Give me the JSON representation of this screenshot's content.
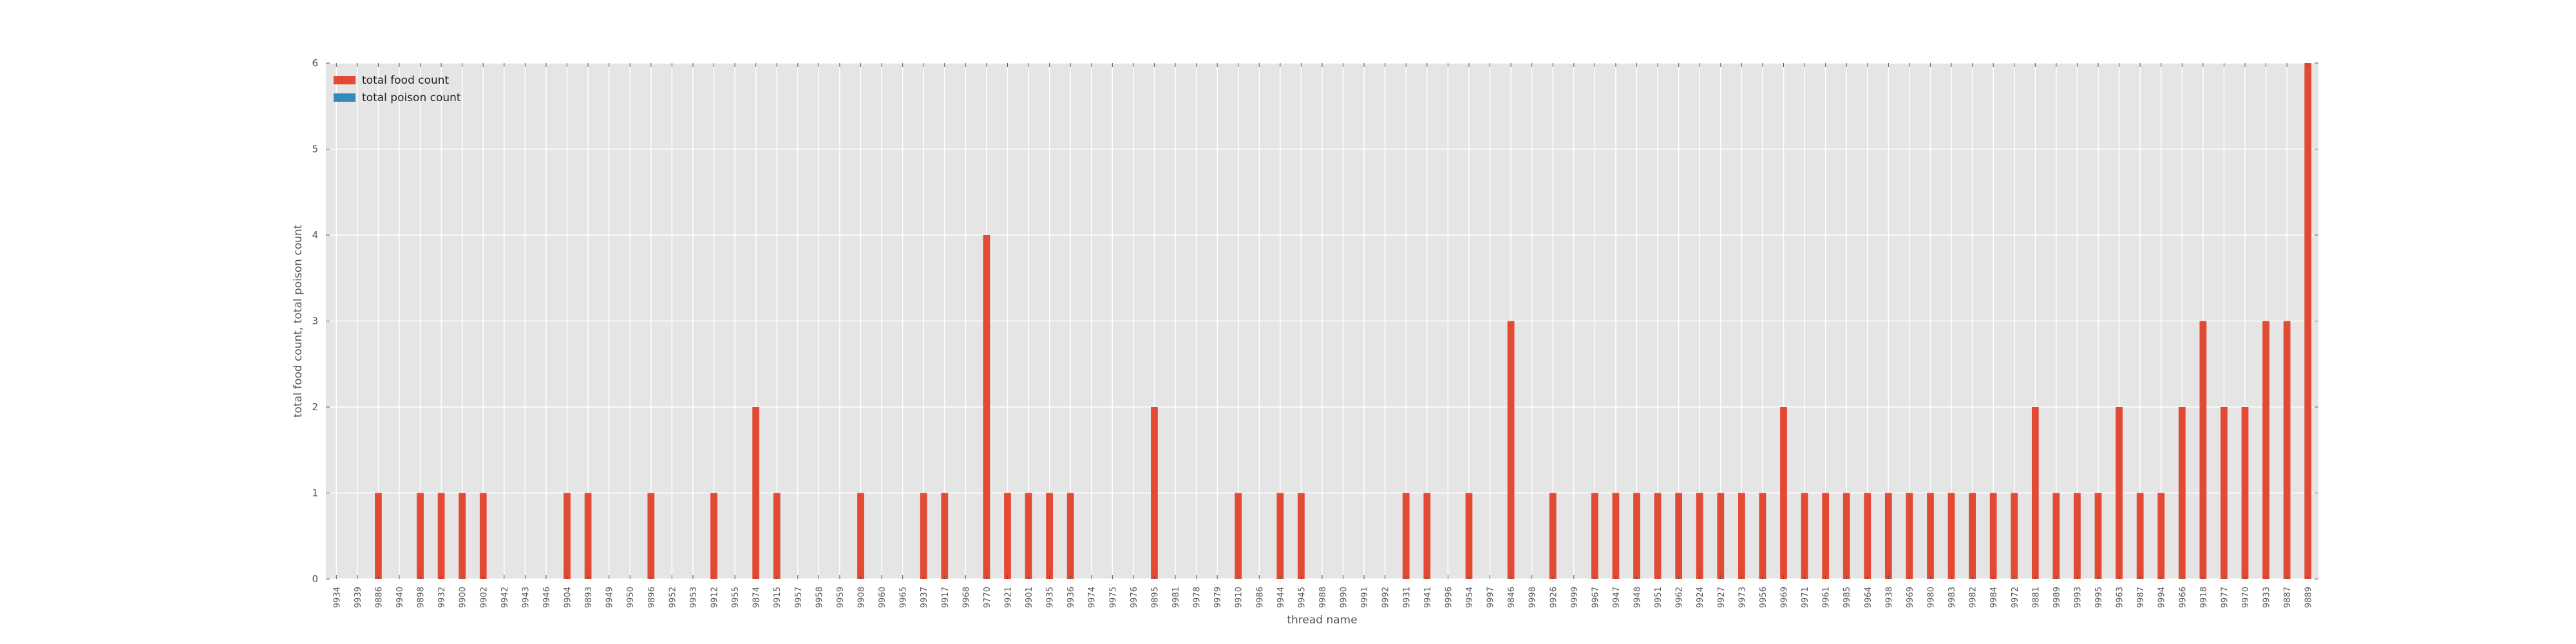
{
  "chart_data": {
    "type": "bar",
    "title": "",
    "xlabel": "thread name",
    "ylabel": "total food count, total poison count",
    "ylim": [
      0,
      6
    ],
    "yticks": [
      "0",
      "1",
      "2",
      "3",
      "4",
      "5",
      "6"
    ],
    "grid": true,
    "legend_position": "top-left",
    "categories": [
      "9934",
      "9939",
      "9886",
      "9940",
      "9898",
      "9932",
      "9900",
      "9902",
      "9942",
      "9943",
      "9946",
      "9904",
      "9893",
      "9949",
      "9950",
      "9896",
      "9952",
      "9953",
      "9912",
      "9955",
      "9874",
      "9915",
      "9957",
      "9958",
      "9959",
      "9908",
      "9960",
      "9965",
      "9937",
      "9917",
      "9968",
      "9770",
      "9921",
      "9901",
      "9935",
      "9936",
      "9974",
      "9975",
      "9976",
      "9895",
      "9981",
      "9978",
      "9979",
      "9910",
      "9986",
      "9944",
      "9945",
      "9988",
      "9990",
      "9991",
      "9992",
      "9931",
      "9941",
      "9996",
      "9954",
      "9997",
      "9846",
      "9998",
      "9926",
      "9999",
      "9967",
      "9947",
      "9948",
      "9951",
      "9962",
      "9924",
      "9927",
      "9973",
      "9956",
      "9969",
      "9971",
      "9961",
      "9985",
      "9964",
      "9938",
      "9969",
      "9980",
      "9983",
      "9982",
      "9984",
      "9972",
      "9881",
      "9989",
      "9993",
      "9995",
      "9963",
      "9987",
      "9994",
      "9966",
      "9918",
      "9977",
      "9970",
      "9933",
      "9887",
      "9889"
    ],
    "series": [
      {
        "name": "total food count",
        "color": "#e24a33",
        "values": [
          0,
          0,
          1,
          0,
          1,
          1,
          1,
          1,
          0,
          0,
          0,
          1,
          1,
          0,
          0,
          1,
          0,
          0,
          1,
          0,
          2,
          1,
          0,
          0,
          0,
          1,
          0,
          0,
          1,
          1,
          0,
          4,
          1,
          1,
          1,
          1,
          0,
          0,
          0,
          2,
          0,
          0,
          0,
          1,
          0,
          1,
          1,
          0,
          0,
          0,
          0,
          1,
          1,
          0,
          1,
          0,
          3,
          0,
          1,
          0,
          1,
          1,
          1,
          1,
          1,
          1,
          1,
          1,
          1,
          2,
          1,
          1,
          1,
          1,
          1,
          1,
          1,
          1,
          1,
          1,
          1,
          2,
          1,
          1,
          1,
          2,
          1,
          1,
          2,
          3,
          2,
          2,
          3,
          3,
          6
        ]
      },
      {
        "name": "total poison count",
        "color": "#348abd",
        "values": [
          0,
          0,
          0,
          0,
          0,
          0,
          0,
          0,
          0,
          0,
          0,
          0,
          0,
          0,
          0,
          0,
          0,
          0,
          0,
          0,
          0,
          0,
          0,
          0,
          0,
          0,
          0,
          0,
          0,
          0,
          0,
          0,
          0,
          0,
          0,
          0,
          0,
          0,
          0,
          0,
          0,
          0,
          0,
          0,
          0,
          0,
          0,
          0,
          0,
          0,
          0,
          0,
          0,
          0,
          0,
          0,
          0,
          0,
          0,
          0,
          0,
          0,
          0,
          0,
          0,
          0,
          0,
          0,
          0,
          0,
          0,
          0,
          0,
          0,
          0,
          0,
          0,
          0,
          0,
          0,
          0,
          0,
          0,
          0,
          0,
          0,
          0,
          0,
          0,
          0,
          0,
          0,
          0,
          0,
          0
        ]
      }
    ],
    "colors": {
      "plot_background": "#e5e5e5",
      "grid": "#ffffff",
      "tick_text": "#555555"
    }
  }
}
